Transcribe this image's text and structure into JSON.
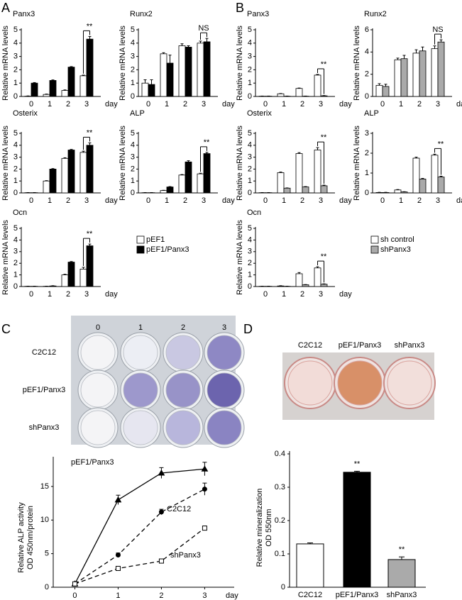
{
  "chart_data": [
    {
      "type": "grouped-bar-multiples",
      "panel": "A",
      "categories": [
        "0",
        "1",
        "2",
        "3"
      ],
      "x_unit": "day",
      "ylabel": "Relative mRNA levels",
      "series": [
        {
          "name": "pEF1",
          "color": "#ffffff"
        },
        {
          "name": "pEF1/Panx3",
          "color": "#000000"
        }
      ],
      "subplots": [
        {
          "title": "Panx3",
          "ylim": [
            0,
            5
          ],
          "yticks": [
            0,
            1,
            2,
            3,
            4,
            5
          ],
          "values": [
            [
              0.02,
              0.15,
              0.45,
              1.55
            ],
            [
              1.0,
              1.2,
              2.2,
              4.3
            ]
          ],
          "errors": [
            [
              0.02,
              0.03,
              0.04,
              0.05
            ],
            [
              0.04,
              0.04,
              0.04,
              0.2
            ]
          ],
          "annotation": "**"
        },
        {
          "title": "Runx2",
          "ylim": [
            0,
            5
          ],
          "yticks": [
            0,
            1,
            2,
            3,
            4,
            5
          ],
          "values": [
            [
              1.0,
              3.2,
              3.8,
              4.0
            ],
            [
              0.9,
              2.5,
              3.7,
              4.1
            ]
          ],
          "errors": [
            [
              0.25,
              0.08,
              0.15,
              0.15
            ],
            [
              0.35,
              0.6,
              0.1,
              0.25
            ]
          ],
          "annotation": "NS"
        },
        {
          "title": "Osterix",
          "ylim": [
            0,
            5
          ],
          "yticks": [
            0,
            1,
            2,
            3,
            4,
            5
          ],
          "values": [
            [
              0.02,
              1.0,
              2.9,
              3.4
            ],
            [
              0.02,
              2.0,
              3.6,
              4.0
            ]
          ],
          "errors": [
            [
              0.01,
              0.03,
              0.05,
              0.1
            ],
            [
              0.01,
              0.04,
              0.05,
              0.2
            ]
          ],
          "annotation": "**"
        },
        {
          "title": "ALP",
          "ylim": [
            0,
            5
          ],
          "yticks": [
            0,
            1,
            2,
            3,
            4,
            5
          ],
          "values": [
            [
              0.02,
              0.2,
              1.5,
              1.6
            ],
            [
              0.02,
              0.5,
              2.6,
              3.3
            ]
          ],
          "errors": [
            [
              0.01,
              0.02,
              0.04,
              0.05
            ],
            [
              0.01,
              0.03,
              0.1,
              0.1
            ]
          ],
          "annotation": "**"
        },
        {
          "title": "Ocn",
          "ylim": [
            0,
            5
          ],
          "yticks": [
            0,
            1,
            2,
            3,
            4,
            5
          ],
          "values": [
            [
              0.02,
              0.02,
              1.0,
              1.5
            ],
            [
              0.02,
              0.05,
              2.1,
              3.5
            ]
          ],
          "errors": [
            [
              0.01,
              0.01,
              0.05,
              0.15
            ],
            [
              0.01,
              0.02,
              0.05,
              0.15
            ]
          ],
          "annotation": "**"
        }
      ]
    },
    {
      "type": "grouped-bar-multiples",
      "panel": "B",
      "categories": [
        "0",
        "1",
        "2",
        "3"
      ],
      "x_unit": "day",
      "ylabel": "Relative mRNA levels",
      "series": [
        {
          "name": "sh control",
          "color": "#ffffff"
        },
        {
          "name": "shPanx3",
          "color": "#aaaaaa"
        }
      ],
      "subplots": [
        {
          "title": "Panx3",
          "ylim": [
            0,
            5
          ],
          "yticks": [
            0,
            1,
            2,
            3,
            4,
            5
          ],
          "values": [
            [
              0.02,
              0.2,
              0.6,
              1.6
            ],
            [
              0.02,
              0.02,
              0.02,
              0.05
            ]
          ],
          "errors": [
            [
              0.01,
              0.02,
              0.03,
              0.05
            ],
            [
              0.01,
              0.01,
              0.01,
              0.02
            ]
          ],
          "annotation": "**"
        },
        {
          "title": "Runx2",
          "ylim": [
            0,
            6
          ],
          "yticks": [
            0,
            2,
            4,
            6
          ],
          "values": [
            [
              1.0,
              3.3,
              3.9,
              4.3
            ],
            [
              0.9,
              3.4,
              4.1,
              4.9
            ]
          ],
          "errors": [
            [
              0.15,
              0.15,
              0.3,
              0.25
            ],
            [
              0.2,
              0.3,
              0.35,
              0.2
            ]
          ],
          "annotation": "NS"
        },
        {
          "title": "Osterix",
          "ylim": [
            0,
            5
          ],
          "yticks": [
            0,
            1,
            2,
            3,
            4,
            5
          ],
          "values": [
            [
              0.02,
              1.7,
              3.3,
              3.6
            ],
            [
              0.02,
              0.4,
              0.5,
              0.6
            ]
          ],
          "errors": [
            [
              0.01,
              0.05,
              0.08,
              0.2
            ],
            [
              0.01,
              0.02,
              0.03,
              0.05
            ]
          ],
          "annotation": "**"
        },
        {
          "title": "ALP",
          "ylim": [
            0,
            3
          ],
          "yticks": [
            0,
            1,
            2,
            3
          ],
          "values": [
            [
              0.02,
              0.15,
              1.75,
              1.9
            ],
            [
              0.02,
              0.05,
              0.7,
              0.8
            ]
          ],
          "errors": [
            [
              0.01,
              0.02,
              0.05,
              0.05
            ],
            [
              0.01,
              0.01,
              0.03,
              0.04
            ]
          ],
          "annotation": "**"
        },
        {
          "title": "Ocn",
          "ylim": [
            0,
            5
          ],
          "yticks": [
            0,
            1,
            2,
            3,
            4,
            5
          ],
          "values": [
            [
              0.02,
              0.05,
              1.1,
              1.6
            ],
            [
              0.02,
              0.02,
              0.15,
              0.2
            ]
          ],
          "errors": [
            [
              0.01,
              0.02,
              0.1,
              0.1
            ],
            [
              0.01,
              0.01,
              0.02,
              0.03
            ]
          ],
          "annotation": "**"
        }
      ]
    },
    {
      "type": "line",
      "x": [
        0,
        1,
        2,
        3
      ],
      "xlim": [
        -0.5,
        3.6
      ],
      "xticks": [
        0,
        1,
        2,
        3
      ],
      "x_unit": "day",
      "ylim": [
        0,
        19
      ],
      "yticks": [
        0,
        5,
        10,
        15
      ],
      "ylabel": [
        "Relative ALP activity",
        "OD 450nm/protein"
      ],
      "series": [
        {
          "name": "pEF1/Panx3",
          "color": "#000000",
          "line_style": "solid",
          "marker": "triangle",
          "marker_fill": "#000000",
          "values": [
            0.5,
            13.0,
            17.0,
            17.6
          ],
          "errors": [
            0.2,
            0.7,
            0.8,
            1.0
          ]
        },
        {
          "name": "C2C12",
          "color": "#000000",
          "line_style": "dashed",
          "marker": "circle",
          "marker_fill": "#000000",
          "values": [
            0.5,
            4.8,
            11.2,
            14.6
          ],
          "errors": [
            0.2,
            0.3,
            0.4,
            0.9
          ]
        },
        {
          "name": "shPanx3",
          "color": "#000000",
          "line_style": "dashed",
          "marker": "square",
          "marker_fill": "#ffffff",
          "values": [
            0.5,
            2.8,
            3.9,
            8.8
          ],
          "errors": [
            0.2,
            0.2,
            0.2,
            0.3
          ]
        }
      ]
    },
    {
      "type": "bar",
      "categories": [
        "C2C12",
        "pEF1/Panx3",
        "shPanx3"
      ],
      "values": [
        0.13,
        0.345,
        0.083
      ],
      "errors": [
        0.003,
        0.003,
        0.008
      ],
      "colors": [
        "#ffffff",
        "#000000",
        "#aaaaaa"
      ],
      "ylim": [
        0,
        0.4
      ],
      "yticks": [
        0,
        0.1,
        0.2,
        0.3,
        0.4
      ],
      "ylabel": [
        "Relative mineralization",
        "OD 550nm"
      ],
      "annotations": [
        {
          "category": "pEF1/Panx3",
          "text": "**"
        },
        {
          "category": "shPanx3",
          "text": "**"
        }
      ]
    }
  ],
  "photos": {
    "C": {
      "label": "C",
      "columns": [
        "0",
        "1",
        "2",
        "3"
      ],
      "rows": [
        "C2C12",
        "pEF1/Panx3",
        "shPanx3"
      ]
    },
    "D": {
      "label": "D",
      "columns": [
        "C2C12",
        "pEF1/Panx3",
        "shPanx3"
      ]
    }
  }
}
